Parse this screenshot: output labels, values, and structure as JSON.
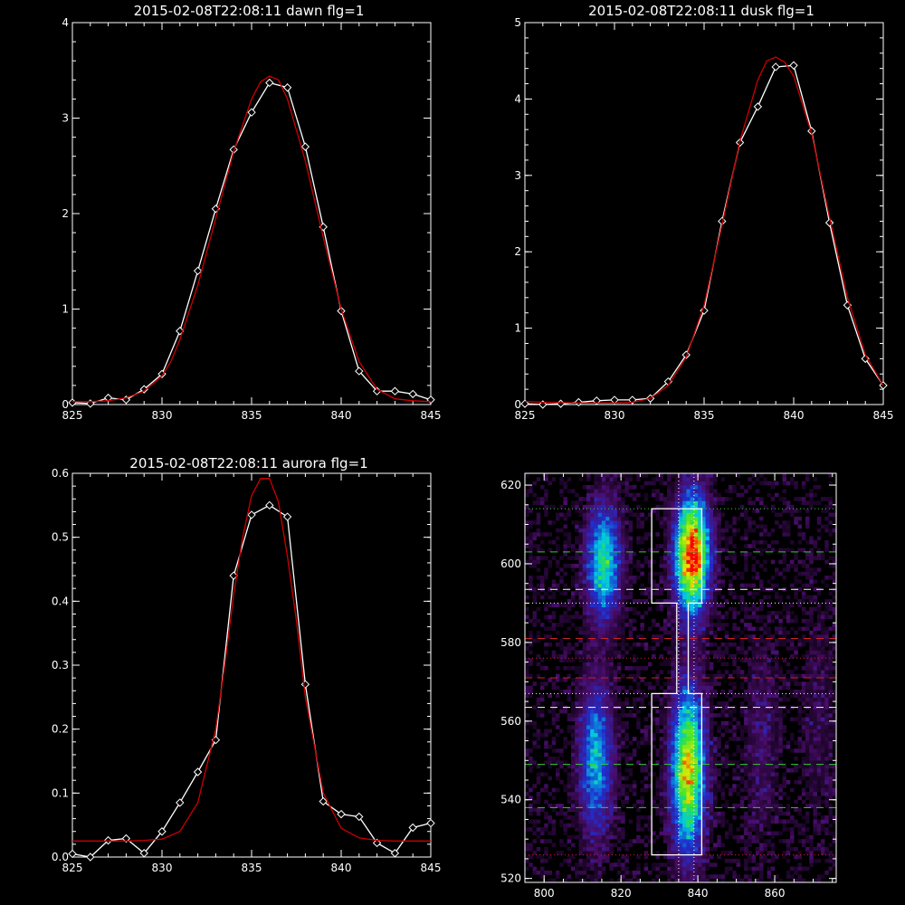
{
  "chart_data": [
    {
      "type": "line",
      "title": "2015-02-08T22:08:11 dawn flg=1",
      "xlim": [
        825,
        845
      ],
      "ylim": [
        0,
        4
      ],
      "xticks": [
        "825",
        "830",
        "835",
        "840",
        "845"
      ],
      "yticks": [
        "0",
        "1",
        "2",
        "3",
        "4"
      ],
      "series": [
        {
          "color": "#ffffff",
          "marker": "diamond",
          "x": [
            825,
            826,
            827,
            828,
            829,
            830,
            831,
            832,
            833,
            834,
            835,
            836,
            837,
            838,
            839,
            840,
            841,
            842,
            843,
            844,
            845
          ],
          "y": [
            0.02,
            0.01,
            0.07,
            0.05,
            0.16,
            0.32,
            0.77,
            1.4,
            2.05,
            2.67,
            3.06,
            3.37,
            3.32,
            2.7,
            1.86,
            0.98,
            0.35,
            0.14,
            0.14,
            0.11,
            0.05
          ]
        },
        {
          "color": "#cc0000",
          "marker": "none",
          "x": [
            825,
            826,
            827,
            828,
            829,
            830,
            830.5,
            831,
            832,
            833,
            834,
            835,
            835.5,
            836,
            836.5,
            837,
            838,
            839,
            840,
            841,
            842,
            843,
            844,
            845
          ],
          "y": [
            0.03,
            0.03,
            0.04,
            0.07,
            0.14,
            0.3,
            0.45,
            0.68,
            1.25,
            1.95,
            2.65,
            3.2,
            3.38,
            3.44,
            3.4,
            3.2,
            2.55,
            1.75,
            1.0,
            0.45,
            0.16,
            0.06,
            0.04,
            0.03
          ]
        }
      ]
    },
    {
      "type": "line",
      "title": "2015-02-08T22:08:11 dusk flg=1",
      "xlim": [
        825,
        845
      ],
      "ylim": [
        0,
        5
      ],
      "xticks": [
        "825",
        "830",
        "835",
        "840",
        "845"
      ],
      "yticks": [
        "0",
        "1",
        "2",
        "3",
        "4",
        "5"
      ],
      "series": [
        {
          "color": "#ffffff",
          "marker": "diamond",
          "x": [
            825,
            826,
            827,
            828,
            829,
            830,
            831,
            832,
            833,
            834,
            835,
            836,
            837,
            838,
            839,
            840,
            841,
            842,
            843,
            844,
            845
          ],
          "y": [
            0.01,
            0.0,
            0.01,
            0.03,
            0.05,
            0.06,
            0.06,
            0.08,
            0.3,
            0.65,
            1.23,
            2.4,
            3.43,
            3.9,
            4.42,
            4.44,
            3.58,
            2.38,
            1.3,
            0.6,
            0.25
          ]
        },
        {
          "color": "#cc0000",
          "marker": "none",
          "x": [
            825,
            826,
            828,
            830,
            831,
            832,
            833,
            834,
            835,
            836,
            837,
            838,
            838.5,
            839,
            839.5,
            840,
            841,
            842,
            843,
            844,
            845
          ],
          "y": [
            0.04,
            0.03,
            0.02,
            0.02,
            0.03,
            0.08,
            0.25,
            0.62,
            1.3,
            2.35,
            3.45,
            4.25,
            4.5,
            4.55,
            4.48,
            4.3,
            3.55,
            2.45,
            1.4,
            0.65,
            0.25
          ]
        }
      ]
    },
    {
      "type": "line",
      "title": "2015-02-08T22:08:11 aurora flg=1",
      "xlim": [
        825,
        845
      ],
      "ylim": [
        0,
        0.6
      ],
      "xticks": [
        "825",
        "830",
        "835",
        "840",
        "845"
      ],
      "yticks": [
        "0.0",
        "0.1",
        "0.2",
        "0.3",
        "0.4",
        "0.5",
        "0.6"
      ],
      "series": [
        {
          "color": "#ffffff",
          "marker": "diamond",
          "x": [
            825,
            826,
            827,
            828,
            829,
            830,
            831,
            832,
            833,
            834,
            835,
            836,
            837,
            838,
            839,
            840,
            841,
            842,
            843,
            844,
            845
          ],
          "y": [
            0.005,
            0.0,
            0.026,
            0.029,
            0.006,
            0.04,
            0.085,
            0.133,
            0.183,
            0.44,
            0.535,
            0.55,
            0.532,
            0.27,
            0.087,
            0.067,
            0.063,
            0.022,
            0.006,
            0.046,
            0.053
          ]
        },
        {
          "color": "#cc0000",
          "marker": "none",
          "x": [
            825,
            826,
            827,
            828,
            829,
            830,
            831,
            832,
            833,
            833.5,
            834,
            834.5,
            835,
            835.5,
            836,
            836.5,
            837,
            837.5,
            838,
            839,
            840,
            841,
            842,
            843,
            844,
            845
          ],
          "y": [
            0.025,
            0.025,
            0.025,
            0.025,
            0.026,
            0.028,
            0.04,
            0.085,
            0.2,
            0.3,
            0.41,
            0.5,
            0.565,
            0.592,
            0.592,
            0.555,
            0.47,
            0.37,
            0.25,
            0.1,
            0.045,
            0.03,
            0.026,
            0.025,
            0.025,
            0.025
          ]
        }
      ]
    },
    {
      "type": "heatmap",
      "title": "",
      "xlim": [
        795,
        876
      ],
      "ylim": [
        519,
        623
      ],
      "xticks": [
        "800",
        "820",
        "840",
        "860"
      ],
      "yticks": [
        "520",
        "540",
        "560",
        "580",
        "600",
        "620"
      ],
      "colormap": [
        "#000000",
        "#4a0d6b",
        "#1f2fcf",
        "#00c8e6",
        "#35e635",
        "#e8e800",
        "#ff0000"
      ],
      "blobs": [
        {
          "cx": 815,
          "cy": 600,
          "sx": 3,
          "sy": 10,
          "amp": 0.55
        },
        {
          "cx": 813,
          "cy": 550,
          "sx": 3,
          "sy": 13,
          "amp": 0.45
        },
        {
          "cx": 838,
          "cy": 602,
          "sx": 3,
          "sy": 10,
          "amp": 1.0
        },
        {
          "cx": 837,
          "cy": 547,
          "sx": 3,
          "sy": 14,
          "amp": 0.8
        },
        {
          "cx": 856,
          "cy": 555,
          "sx": 3,
          "sy": 18,
          "amp": 0.12
        },
        {
          "cx": 871,
          "cy": 560,
          "sx": 3,
          "sy": 20,
          "amp": 0.08
        }
      ],
      "box_outline": [
        [
          828,
          614
        ],
        [
          841,
          614
        ],
        [
          841,
          590
        ],
        [
          837.5,
          590
        ],
        [
          837.5,
          567
        ],
        [
          841,
          567
        ],
        [
          841,
          526
        ],
        [
          828,
          526
        ],
        [
          828,
          567
        ],
        [
          834.5,
          567
        ],
        [
          834.5,
          590
        ],
        [
          828,
          590
        ],
        [
          828,
          614
        ]
      ],
      "vertical_dotted_lines": [
        {
          "x": 835,
          "color": "#ffffff"
        },
        {
          "x": 839,
          "color": "#ffffff"
        }
      ],
      "horizontal_lines": [
        {
          "y": 614,
          "color": "#33cc33",
          "style": "dotted"
        },
        {
          "y": 603,
          "color": "#33cc33",
          "style": "dashed"
        },
        {
          "y": 593.5,
          "color": "#ffffff",
          "style": "dashed"
        },
        {
          "y": 590,
          "color": "#ffffff",
          "style": "dotted"
        },
        {
          "y": 581,
          "color": "#cc2222",
          "style": "dashed"
        },
        {
          "y": 576,
          "color": "#cc2222",
          "style": "dotted"
        },
        {
          "y": 571,
          "color": "#cc2222",
          "style": "dashed"
        },
        {
          "y": 567,
          "color": "#ffffff",
          "style": "dotted"
        },
        {
          "y": 563.5,
          "color": "#ffffff",
          "style": "dashed"
        },
        {
          "y": 549,
          "color": "#33cc33",
          "style": "dashed"
        },
        {
          "y": 538,
          "color": "#33cc33",
          "style": "dashed"
        },
        {
          "y": 526,
          "color": "#cc2222",
          "style": "dotted"
        }
      ]
    }
  ]
}
